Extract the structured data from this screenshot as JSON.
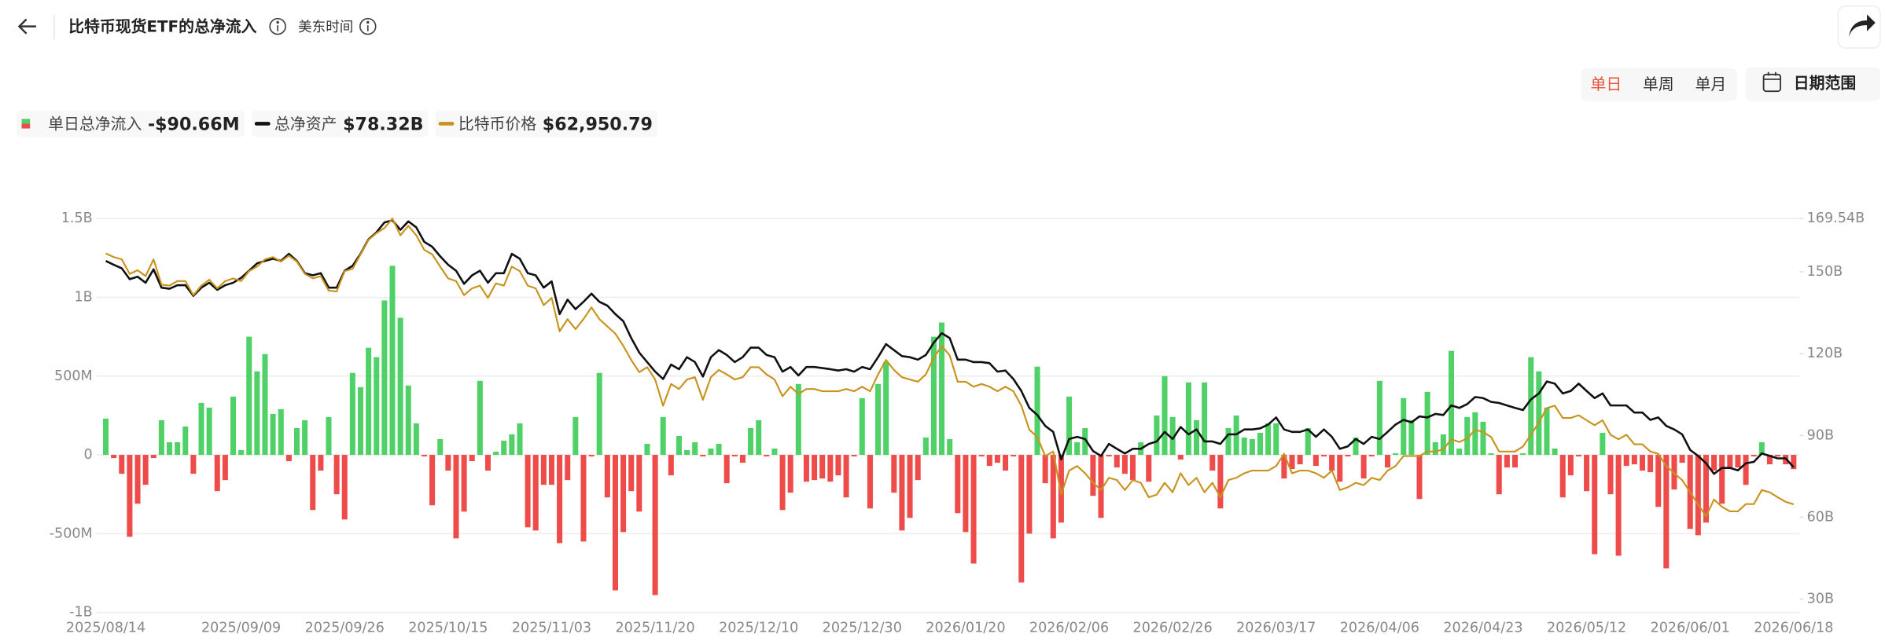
{
  "header": {
    "title": "比特币现货ETF的总净流入",
    "timezone": "美东时间"
  },
  "controls": {
    "tabs": [
      "单日",
      "单周",
      "单月"
    ],
    "active": 0,
    "date_range": "日期范围"
  },
  "chart_data": {
    "type": "combo",
    "grid": true,
    "categories": [
      "2025/08/14",
      null,
      null,
      null,
      null,
      null,
      null,
      null,
      null,
      null,
      null,
      null,
      null,
      null,
      null,
      null,
      null,
      "2025/09/09",
      null,
      null,
      null,
      null,
      null,
      null,
      null,
      null,
      null,
      null,
      null,
      null,
      "2025/09/26",
      null,
      null,
      null,
      null,
      null,
      null,
      null,
      null,
      null,
      null,
      null,
      null,
      "2025/10/15",
      null,
      null,
      null,
      null,
      null,
      null,
      null,
      null,
      null,
      null,
      null,
      null,
      "2025/11/03",
      null,
      null,
      null,
      null,
      null,
      null,
      null,
      null,
      null,
      null,
      null,
      null,
      "2025/11/20",
      null,
      null,
      null,
      null,
      null,
      null,
      null,
      null,
      null,
      null,
      null,
      null,
      "2025/12/10",
      null,
      null,
      null,
      null,
      null,
      null,
      null,
      null,
      null,
      null,
      null,
      null,
      "2025/12/30",
      null,
      null,
      null,
      null,
      null,
      null,
      null,
      null,
      null,
      null,
      null,
      null,
      "2026/01/20",
      null,
      null,
      null,
      null,
      null,
      null,
      null,
      null,
      null,
      null,
      null,
      null,
      "2026/02/06",
      null,
      null,
      null,
      null,
      null,
      null,
      null,
      null,
      null,
      null,
      null,
      null,
      "2026/02/26",
      null,
      null,
      null,
      null,
      null,
      null,
      null,
      null,
      null,
      null,
      null,
      null,
      "2026/03/17",
      null,
      null,
      null,
      null,
      null,
      null,
      null,
      null,
      null,
      null,
      null,
      null,
      "2026/04/06",
      null,
      null,
      null,
      null,
      null,
      null,
      null,
      null,
      null,
      null,
      null,
      null,
      "2026/04/23",
      null,
      null,
      null,
      null,
      null,
      null,
      null,
      null,
      null,
      null,
      null,
      null,
      "2026/05/12",
      null,
      null,
      null,
      null,
      null,
      null,
      null,
      null,
      null,
      null,
      null,
      null,
      "2026/06/01",
      null,
      null,
      null,
      null,
      null,
      null,
      null,
      null,
      null,
      null,
      null,
      null,
      "2026/06/18"
    ],
    "series": [
      {
        "name": "单日总净流入",
        "type": "bar",
        "color_up": "#4fd168",
        "color_down": "#ee4b4b",
        "latest_label": "-$90.66M",
        "values": [
          230,
          -20,
          -120,
          -520,
          -310,
          -190,
          -20,
          220,
          80,
          80,
          180,
          -120,
          330,
          300,
          -230,
          -160,
          370,
          30,
          750,
          530,
          640,
          260,
          290,
          -40,
          170,
          220,
          -350,
          -100,
          240,
          -250,
          -410,
          520,
          430,
          680,
          620,
          980,
          1200,
          870,
          440,
          200,
          -10,
          -320,
          100,
          -100,
          -530,
          -360,
          -40,
          470,
          -100,
          20,
          90,
          130,
          200,
          -460,
          -480,
          -190,
          -190,
          -560,
          -160,
          240,
          -550,
          -10,
          520,
          -270,
          -860,
          -490,
          -230,
          -360,
          70,
          -890,
          240,
          -130,
          120,
          30,
          80,
          -10,
          40,
          70,
          -180,
          -10,
          -50,
          170,
          220,
          -10,
          40,
          -350,
          -240,
          450,
          -170,
          -160,
          -150,
          -170,
          -130,
          -270,
          -10,
          360,
          -340,
          450,
          590,
          -240,
          -480,
          -400,
          -160,
          110,
          750,
          840,
          100,
          -370,
          -490,
          -690,
          -10,
          -70,
          -50,
          -100,
          -10,
          -810,
          -500,
          560,
          -180,
          -530,
          -430,
          370,
          80,
          170,
          -260,
          -400,
          -10,
          -80,
          -120,
          -160,
          80,
          -170,
          250,
          500,
          240,
          -30,
          460,
          220,
          460,
          -100,
          -340,
          170,
          250,
          110,
          100,
          140,
          200,
          200,
          -150,
          -90,
          -60,
          170,
          -70,
          -10,
          -100,
          -170,
          -10,
          110,
          -150,
          -10,
          470,
          -80,
          10,
          360,
          220,
          -280,
          400,
          80,
          130,
          660,
          40,
          240,
          270,
          210,
          10,
          -250,
          -80,
          -80,
          10,
          620,
          530,
          300,
          40,
          -270,
          -130,
          -10,
          -230,
          -630,
          140,
          -250,
          -640,
          -70,
          -60,
          -100,
          -110,
          -330,
          -720,
          -220,
          -50,
          -470,
          -510,
          -430,
          -100,
          -310,
          -80,
          -80,
          -190,
          -10,
          80,
          -60,
          -10,
          -60,
          -90.66
        ]
      },
      {
        "name": "总净资产",
        "type": "line",
        "axis": "y2",
        "color": "#111111",
        "latest_label": "$78.32B",
        "values": [
          154.0,
          152.6,
          151.3,
          147.3,
          148.2,
          146.0,
          150.9,
          144.2,
          143.8,
          145.1,
          145.1,
          141.2,
          144.2,
          146.0,
          143.4,
          145.1,
          146.0,
          147.8,
          150.4,
          153.1,
          154.0,
          154.8,
          154.0,
          156.6,
          154.0,
          149.5,
          148.7,
          149.5,
          144.2,
          144.2,
          150.4,
          152.2,
          156.6,
          161.9,
          164.5,
          168.1,
          168.9,
          165.4,
          168.5,
          166.3,
          161.0,
          159.2,
          155.7,
          152.6,
          150.4,
          145.6,
          148.7,
          150.4,
          146.0,
          149.5,
          149.5,
          156.6,
          154.8,
          149.5,
          148.7,
          144.2,
          146.5,
          134.5,
          139.8,
          136.3,
          139.0,
          142.0,
          139.0,
          137.6,
          134.5,
          131.9,
          125.7,
          120.4,
          116.9,
          113.4,
          110.7,
          116.0,
          114.3,
          118.7,
          116.9,
          111.6,
          118.7,
          121.3,
          119.5,
          116.9,
          118.7,
          122.2,
          122.2,
          119.5,
          118.7,
          113.4,
          115.1,
          112.0,
          115.1,
          115.1,
          114.7,
          114.3,
          113.8,
          114.3,
          113.4,
          115.1,
          114.3,
          118.7,
          123.5,
          121.3,
          119.1,
          118.7,
          117.8,
          119.5,
          124.0,
          127.5,
          125.7,
          117.8,
          117.8,
          116.9,
          116.9,
          116.5,
          113.4,
          113.8,
          110.7,
          106.3,
          100.1,
          97.5,
          93.5,
          91.3,
          81.2,
          88.7,
          89.5,
          88.7,
          84.3,
          82.5,
          86.9,
          85.1,
          83.4,
          85.1,
          85.1,
          86.9,
          87.8,
          91.3,
          88.7,
          93.1,
          90.4,
          92.2,
          87.8,
          87.8,
          86.9,
          90.4,
          90.4,
          92.2,
          92.2,
          92.6,
          94.0,
          96.6,
          92.2,
          91.3,
          91.3,
          92.2,
          89.5,
          92.2,
          89.5,
          85.1,
          86.0,
          88.7,
          86.9,
          89.5,
          88.7,
          91.3,
          94.0,
          95.7,
          94.8,
          97.0,
          96.6,
          97.9,
          97.5,
          101.0,
          100.1,
          101.5,
          104.1,
          103.7,
          102.3,
          101.9,
          101.0,
          100.1,
          99.3,
          103.2,
          105.4,
          109.8,
          109.0,
          105.4,
          106.3,
          109.0,
          106.3,
          103.7,
          105.4,
          101.0,
          101.0,
          101.0,
          98.4,
          98.4,
          95.7,
          96.6,
          93.5,
          92.2,
          90.4,
          84.7,
          82.5,
          79.8,
          75.9,
          78.1,
          78.1,
          77.2,
          79.8,
          80.3,
          83.4,
          82.5,
          81.6,
          81.6,
          78.32
        ]
      },
      {
        "name": "比特币价格",
        "type": "line",
        "axis": "y3",
        "color": "#c8931d",
        "latest_label": "$62,950.79",
        "values": [
          118300,
          117500,
          117000,
          113800,
          114600,
          113300,
          117000,
          111400,
          111200,
          112200,
          112200,
          109100,
          111200,
          112500,
          110600,
          112200,
          112800,
          112200,
          114400,
          115400,
          117000,
          117500,
          116500,
          117800,
          116500,
          113800,
          112800,
          113300,
          110100,
          109900,
          114400,
          114900,
          118100,
          121300,
          122800,
          123900,
          126000,
          122300,
          124400,
          122300,
          119100,
          118100,
          115400,
          112800,
          112200,
          109100,
          110600,
          111200,
          108500,
          111700,
          111200,
          115400,
          114400,
          111200,
          110600,
          106900,
          108500,
          101100,
          103800,
          101600,
          103800,
          106400,
          103800,
          102200,
          100600,
          97900,
          94800,
          92100,
          93200,
          90500,
          84700,
          89500,
          88400,
          90500,
          91000,
          86000,
          91000,
          92600,
          91600,
          90500,
          91000,
          93200,
          93200,
          91600,
          90500,
          86800,
          88900,
          87300,
          88400,
          88400,
          87900,
          87900,
          87900,
          88400,
          87900,
          88900,
          87900,
          91600,
          94800,
          92600,
          91000,
          90500,
          90000,
          91600,
          95300,
          97900,
          95800,
          90000,
          90000,
          88900,
          89500,
          88900,
          87900,
          88900,
          87900,
          84700,
          79400,
          77800,
          73600,
          74600,
          65100,
          70400,
          71400,
          69800,
          67700,
          66100,
          68800,
          68300,
          66100,
          68300,
          67700,
          64500,
          65100,
          67700,
          65600,
          69800,
          67200,
          68800,
          65600,
          67700,
          64500,
          68300,
          68800,
          69800,
          70400,
          70400,
          70400,
          71400,
          74100,
          69800,
          70400,
          70400,
          69800,
          68800,
          70400,
          66100,
          66700,
          67700,
          67200,
          68800,
          68300,
          70400,
          71400,
          73600,
          73600,
          73600,
          74600,
          74600,
          75100,
          77300,
          76700,
          77500,
          79400,
          78900,
          77800,
          74600,
          74600,
          74600,
          75700,
          78300,
          81000,
          84200,
          84700,
          82000,
          82000,
          82600,
          81500,
          80400,
          81500,
          78300,
          77300,
          78300,
          76200,
          76200,
          74600,
          74100,
          71400,
          69800,
          68300,
          65600,
          62950,
          60300,
          64000,
          62400,
          61400,
          61400,
          63000,
          63000,
          66100,
          65600,
          64500,
          63500,
          62950.79
        ]
      }
    ],
    "ylim": [
      -1000,
      1500
    ],
    "yticks": [
      {
        "value": -1000,
        "label": "-1B"
      },
      {
        "value": -500,
        "label": "-500M"
      },
      0,
      {
        "value": 500,
        "label": "500M"
      },
      {
        "value": 1000,
        "label": "1B"
      },
      {
        "value": 1500,
        "label": "1.5B"
      }
    ],
    "y2lim": [
      25.1,
      169.54
    ],
    "y2ticks": [
      {
        "value": 30,
        "label": "30B"
      },
      {
        "value": 60,
        "label": "60B"
      },
      {
        "value": 90,
        "label": "90B"
      },
      {
        "value": 120,
        "label": "120B"
      },
      {
        "value": 150,
        "label": "150B"
      },
      {
        "value": 169.54,
        "label": "169.54B"
      }
    ],
    "y3lim": [
      39100,
      126000
    ]
  }
}
